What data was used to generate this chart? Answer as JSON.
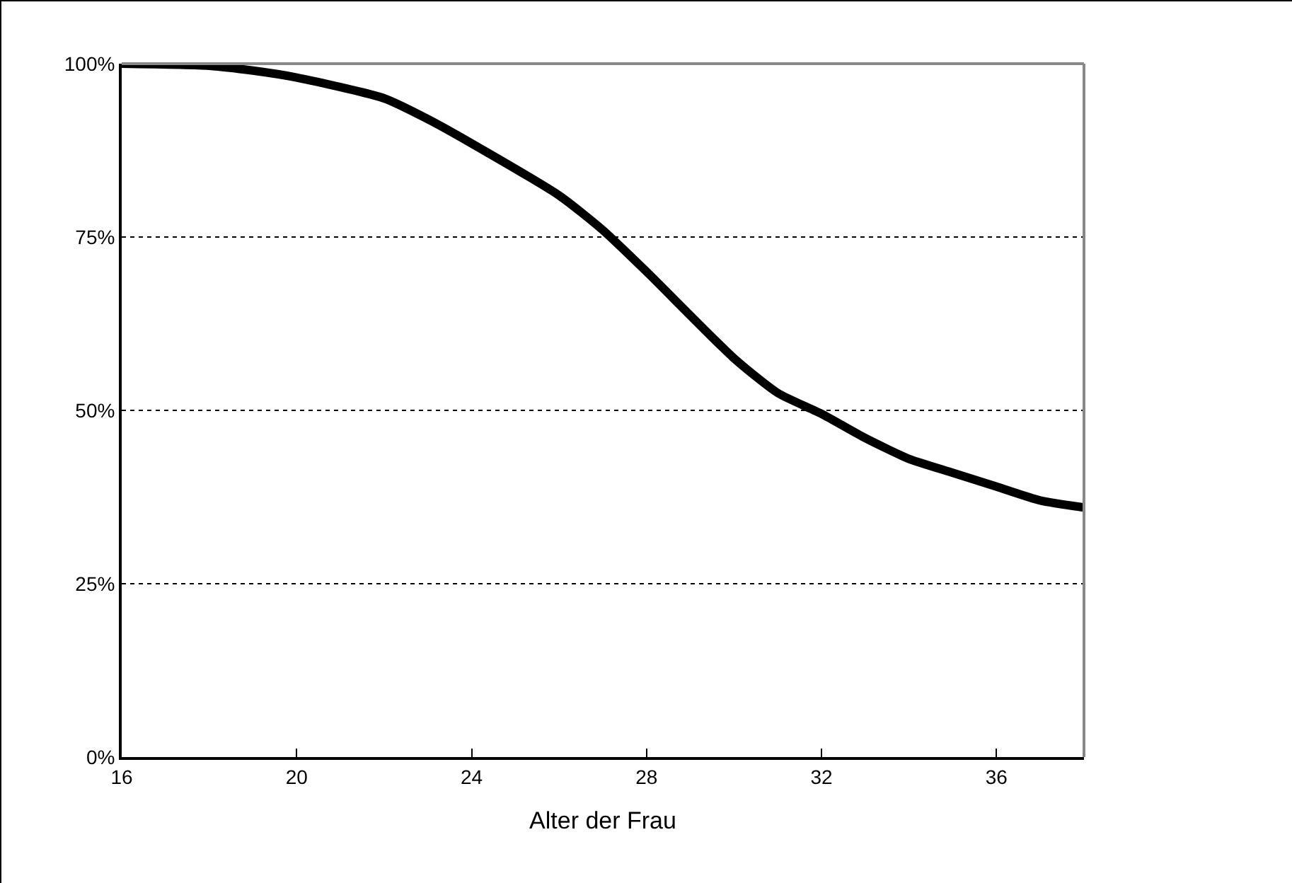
{
  "chart_data": {
    "type": "line",
    "xlabel": "Alter der Frau",
    "x": [
      16,
      18,
      19,
      20,
      22,
      23,
      24,
      26,
      27,
      28,
      30,
      31,
      32,
      33,
      34,
      35,
      36,
      37,
      38
    ],
    "series": [
      {
        "color": "#000000",
        "values": [
          100,
          99.7,
          99,
          98,
          95,
          92,
          88.5,
          81,
          76,
          70,
          57.5,
          52.5,
          49.5,
          46,
          43,
          41,
          39,
          37,
          36
        ]
      }
    ],
    "xlim": [
      16,
      38
    ],
    "xticks": [
      16,
      20,
      24,
      28,
      32,
      36
    ],
    "ylim": [
      0,
      100
    ],
    "yticks": [
      {
        "value": 0,
        "label": "0%"
      },
      {
        "value": 25,
        "label": "25%"
      },
      {
        "value": 50,
        "label": "50%"
      },
      {
        "value": 75,
        "label": "75%"
      },
      {
        "value": 100,
        "label": "100%"
      }
    ],
    "grid": "y",
    "marker": "none",
    "line_style": "solid"
  }
}
